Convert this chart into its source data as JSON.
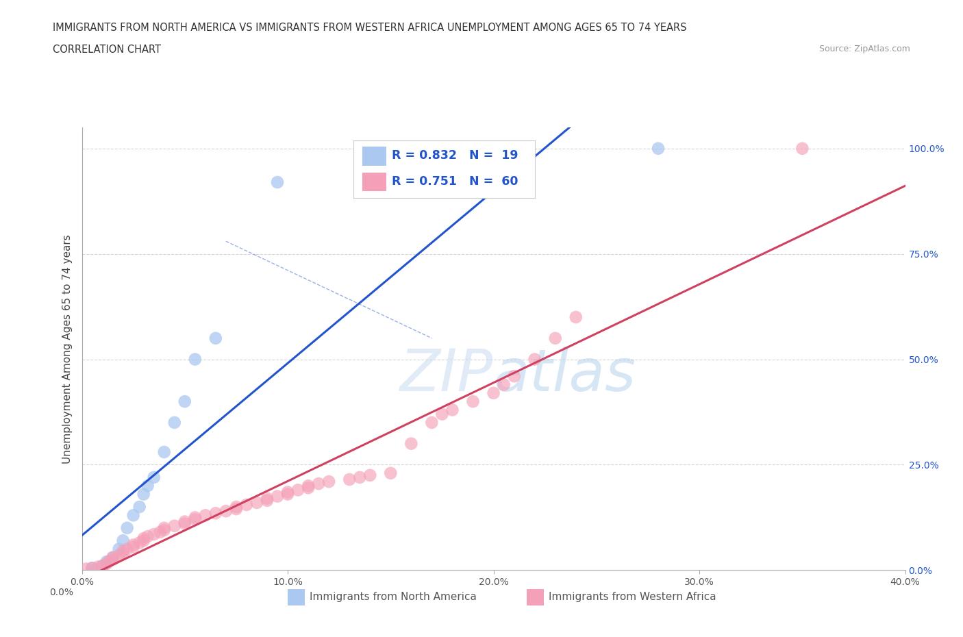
{
  "title_line1": "IMMIGRANTS FROM NORTH AMERICA VS IMMIGRANTS FROM WESTERN AFRICA UNEMPLOYMENT AMONG AGES 65 TO 74 YEARS",
  "title_line2": "CORRELATION CHART",
  "source_text": "Source: ZipAtlas.com",
  "ylabel": "Unemployment Among Ages 65 to 74 years",
  "y_tick_labels_right": [
    "100.0%",
    "75.0%",
    "50.0%",
    "25.0%"
  ],
  "y_tick_vals": [
    0,
    25,
    50,
    75,
    100
  ],
  "x_tick_vals": [
    0,
    10,
    20,
    30,
    40
  ],
  "x_tick_labels": [
    "0.0%",
    "10.0%",
    "20.0%",
    "30.0%",
    "40.0%"
  ],
  "bottom_left_label": "0.0%",
  "bottom_right_label": "40.0%",
  "legend_blue_R": "R = 0.832",
  "legend_blue_N": "N =  19",
  "legend_pink_R": "R = 0.751",
  "legend_pink_N": "N =  60",
  "label_blue": "Immigrants from North America",
  "label_pink": "Immigrants from Western Africa",
  "blue_color": "#aac8f0",
  "pink_color": "#f4a0b8",
  "blue_line_color": "#2255cc",
  "pink_line_color": "#d04060",
  "legend_text_color": "#2255cc",
  "watermark_color": "#c8ddf5",
  "watermark": "ZIPatlas",
  "blue_scatter_x": [
    0.5,
    1.0,
    1.2,
    1.5,
    1.8,
    2.0,
    2.2,
    2.5,
    2.8,
    3.0,
    3.2,
    3.5,
    4.0,
    4.5,
    5.0,
    5.5,
    6.5,
    9.5,
    28.0
  ],
  "blue_scatter_y": [
    0.5,
    1.0,
    2.0,
    3.0,
    5.0,
    7.0,
    10.0,
    13.0,
    15.0,
    18.0,
    20.0,
    22.0,
    28.0,
    35.0,
    40.0,
    50.0,
    55.0,
    92.0,
    100.0
  ],
  "pink_scatter_x": [
    0.2,
    0.5,
    0.8,
    1.0,
    1.2,
    1.3,
    1.5,
    1.5,
    1.8,
    2.0,
    2.0,
    2.2,
    2.5,
    2.5,
    2.8,
    3.0,
    3.0,
    3.2,
    3.5,
    3.8,
    4.0,
    4.0,
    4.5,
    5.0,
    5.0,
    5.5,
    5.5,
    6.0,
    6.5,
    7.0,
    7.5,
    7.5,
    8.0,
    8.5,
    9.0,
    9.0,
    9.5,
    10.0,
    10.0,
    10.5,
    11.0,
    11.0,
    11.5,
    12.0,
    13.0,
    13.5,
    14.0,
    15.0,
    16.0,
    17.0,
    17.5,
    18.0,
    19.0,
    20.0,
    20.5,
    21.0,
    22.0,
    23.0,
    24.0,
    35.0
  ],
  "pink_scatter_y": [
    0.3,
    0.5,
    0.8,
    1.0,
    1.5,
    2.0,
    2.5,
    3.0,
    3.5,
    4.0,
    4.5,
    5.0,
    5.5,
    6.0,
    6.5,
    7.0,
    7.5,
    8.0,
    8.5,
    9.0,
    9.5,
    10.0,
    10.5,
    11.0,
    11.5,
    12.0,
    12.5,
    13.0,
    13.5,
    14.0,
    14.5,
    15.0,
    15.5,
    16.0,
    16.5,
    17.0,
    17.5,
    18.0,
    18.5,
    19.0,
    19.5,
    20.0,
    20.5,
    21.0,
    21.5,
    22.0,
    22.5,
    23.0,
    30.0,
    35.0,
    37.0,
    38.0,
    40.0,
    42.0,
    44.0,
    46.0,
    50.0,
    55.0,
    60.0,
    100.0
  ],
  "xlim": [
    0,
    40
  ],
  "ylim": [
    0,
    105
  ],
  "grid_color": "#cccccc",
  "spine_color": "#aaaaaa"
}
